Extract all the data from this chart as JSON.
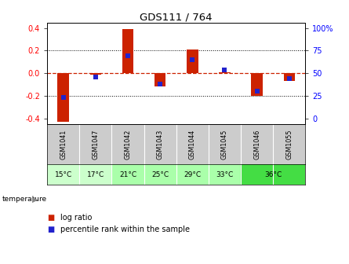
{
  "title": "GDS111 / 764",
  "samples": [
    "GSM1041",
    "GSM1047",
    "GSM1042",
    "GSM1043",
    "GSM1044",
    "GSM1045",
    "GSM1046",
    "GSM1055"
  ],
  "log_ratio": [
    -0.43,
    -0.01,
    0.39,
    -0.12,
    0.21,
    0.01,
    -0.2,
    -0.07
  ],
  "percentile": [
    23,
    46,
    69,
    38,
    65,
    54,
    30,
    44
  ],
  "temperatures": [
    "15°C",
    "17°C",
    "21°C",
    "25°C",
    "29°C",
    "33°C",
    "36°C",
    "36°C"
  ],
  "temp_text_positions": [
    [
      0,
      "15°C"
    ],
    [
      1,
      "17°C"
    ],
    [
      2,
      "21°C"
    ],
    [
      3,
      "25°C"
    ],
    [
      4,
      "29°C"
    ],
    [
      5,
      "33°C"
    ],
    [
      6.5,
      "36°C"
    ]
  ],
  "temp_colors": [
    "#ccffcc",
    "#ccffcc",
    "#aaffaa",
    "#aaffaa",
    "#aaffaa",
    "#aaffaa",
    "#44dd44",
    "#44dd44"
  ],
  "bar_color": "#cc2200",
  "dot_color": "#2222cc",
  "zero_line_color": "#cc2200",
  "grid_color": "#000000",
  "ylim": [
    -0.45,
    0.45
  ],
  "y_left_ticks": [
    -0.4,
    -0.2,
    0.0,
    0.2,
    0.4
  ],
  "y_right_labels": [
    "0",
    "25",
    "50",
    "75",
    "100%"
  ],
  "bar_width": 0.35,
  "dot_size": 18,
  "background_color": "#ffffff",
  "header_bg": "#cccccc",
  "legend_bar_label": "log ratio",
  "legend_dot_label": "percentile rank within the sample"
}
